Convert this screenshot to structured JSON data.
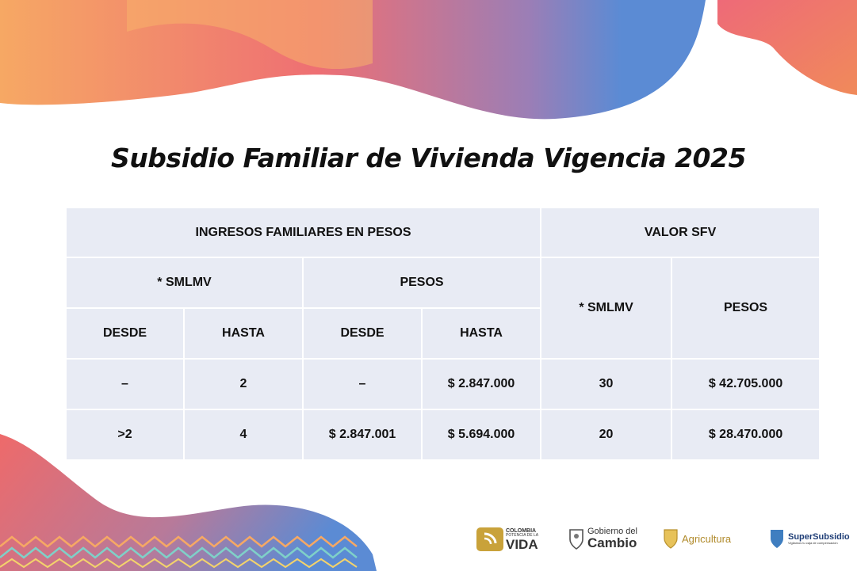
{
  "title": "Subsidio Familiar de Vivienda Vigencia 2025",
  "colors": {
    "header_bg": "#e8ebf4",
    "accent_orange": "#f4a261",
    "accent_coral": "#ee6a6a",
    "accent_blue": "#5b8bd4"
  },
  "table": {
    "group_header_left": "INGRESOS FAMILIARES EN PESOS",
    "group_header_right": "VALOR SFV",
    "sub_smlmv": "* SMLMV",
    "sub_pesos": "PESOS",
    "col_desde_1": "DESDE",
    "col_hasta_1": "HASTA",
    "col_desde_2": "DESDE",
    "col_hasta_2": "HASTA",
    "sfv_smlmv": "* SMLMV",
    "sfv_pesos": "PESOS",
    "rows": [
      [
        "–",
        "2",
        "–",
        "$  2.847.000",
        "30",
        "$ 42.705.000"
      ],
      [
        ">2",
        "4",
        "$ 2.847.001",
        "$ 5.694.000",
        "20",
        "$ 28.470.000"
      ]
    ]
  },
  "logos": {
    "colombia": {
      "line1": "COLOMBIA",
      "line2": "POTENCIA DE LA",
      "line3": "VIDA"
    },
    "gobierno": {
      "line1": "Gobierno del",
      "line2": "Cambio"
    },
    "agricultura": {
      "label": "Agricultura"
    },
    "supersubsidio": {
      "label": "SuperSubsidio",
      "tagline": "Vigilamos tu caja de compensación"
    }
  }
}
